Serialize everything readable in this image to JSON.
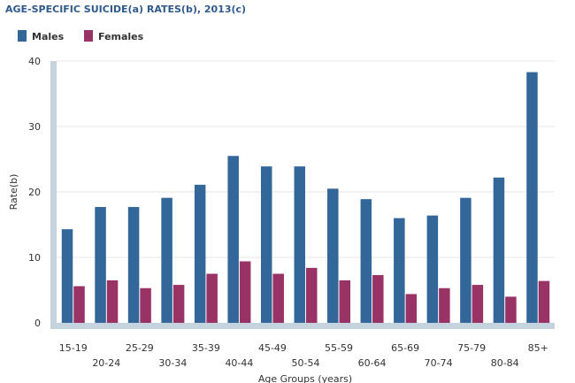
{
  "chart_data": {
    "type": "bar",
    "title": "AGE-SPECIFIC SUICIDE(a) RATES(b), 2013(c)",
    "xlabel": "Age Groups (years)",
    "ylabel": "Rate(b)",
    "ylim": [
      0,
      40
    ],
    "yticks": [
      "0",
      "10",
      "20",
      "30",
      "40"
    ],
    "grid": true,
    "legend_position": "top-left",
    "categories": [
      "15-19",
      "20-24",
      "25-29",
      "30-34",
      "35-39",
      "40-44",
      "45-49",
      "50-54",
      "55-59",
      "60-64",
      "65-69",
      "70-74",
      "75-79",
      "80-84",
      "85+"
    ],
    "series": [
      {
        "name": "Males",
        "color": "#336699",
        "values": [
          14.3,
          17.7,
          17.7,
          19.1,
          21.1,
          25.5,
          23.9,
          23.9,
          20.5,
          18.9,
          16.0,
          16.4,
          19.1,
          22.2,
          38.3
        ]
      },
      {
        "name": "Females",
        "color": "#993366",
        "values": [
          5.6,
          6.5,
          5.3,
          5.8,
          7.5,
          9.4,
          7.5,
          8.4,
          6.5,
          7.3,
          4.4,
          5.3,
          5.8,
          4.0,
          6.4
        ]
      }
    ]
  }
}
